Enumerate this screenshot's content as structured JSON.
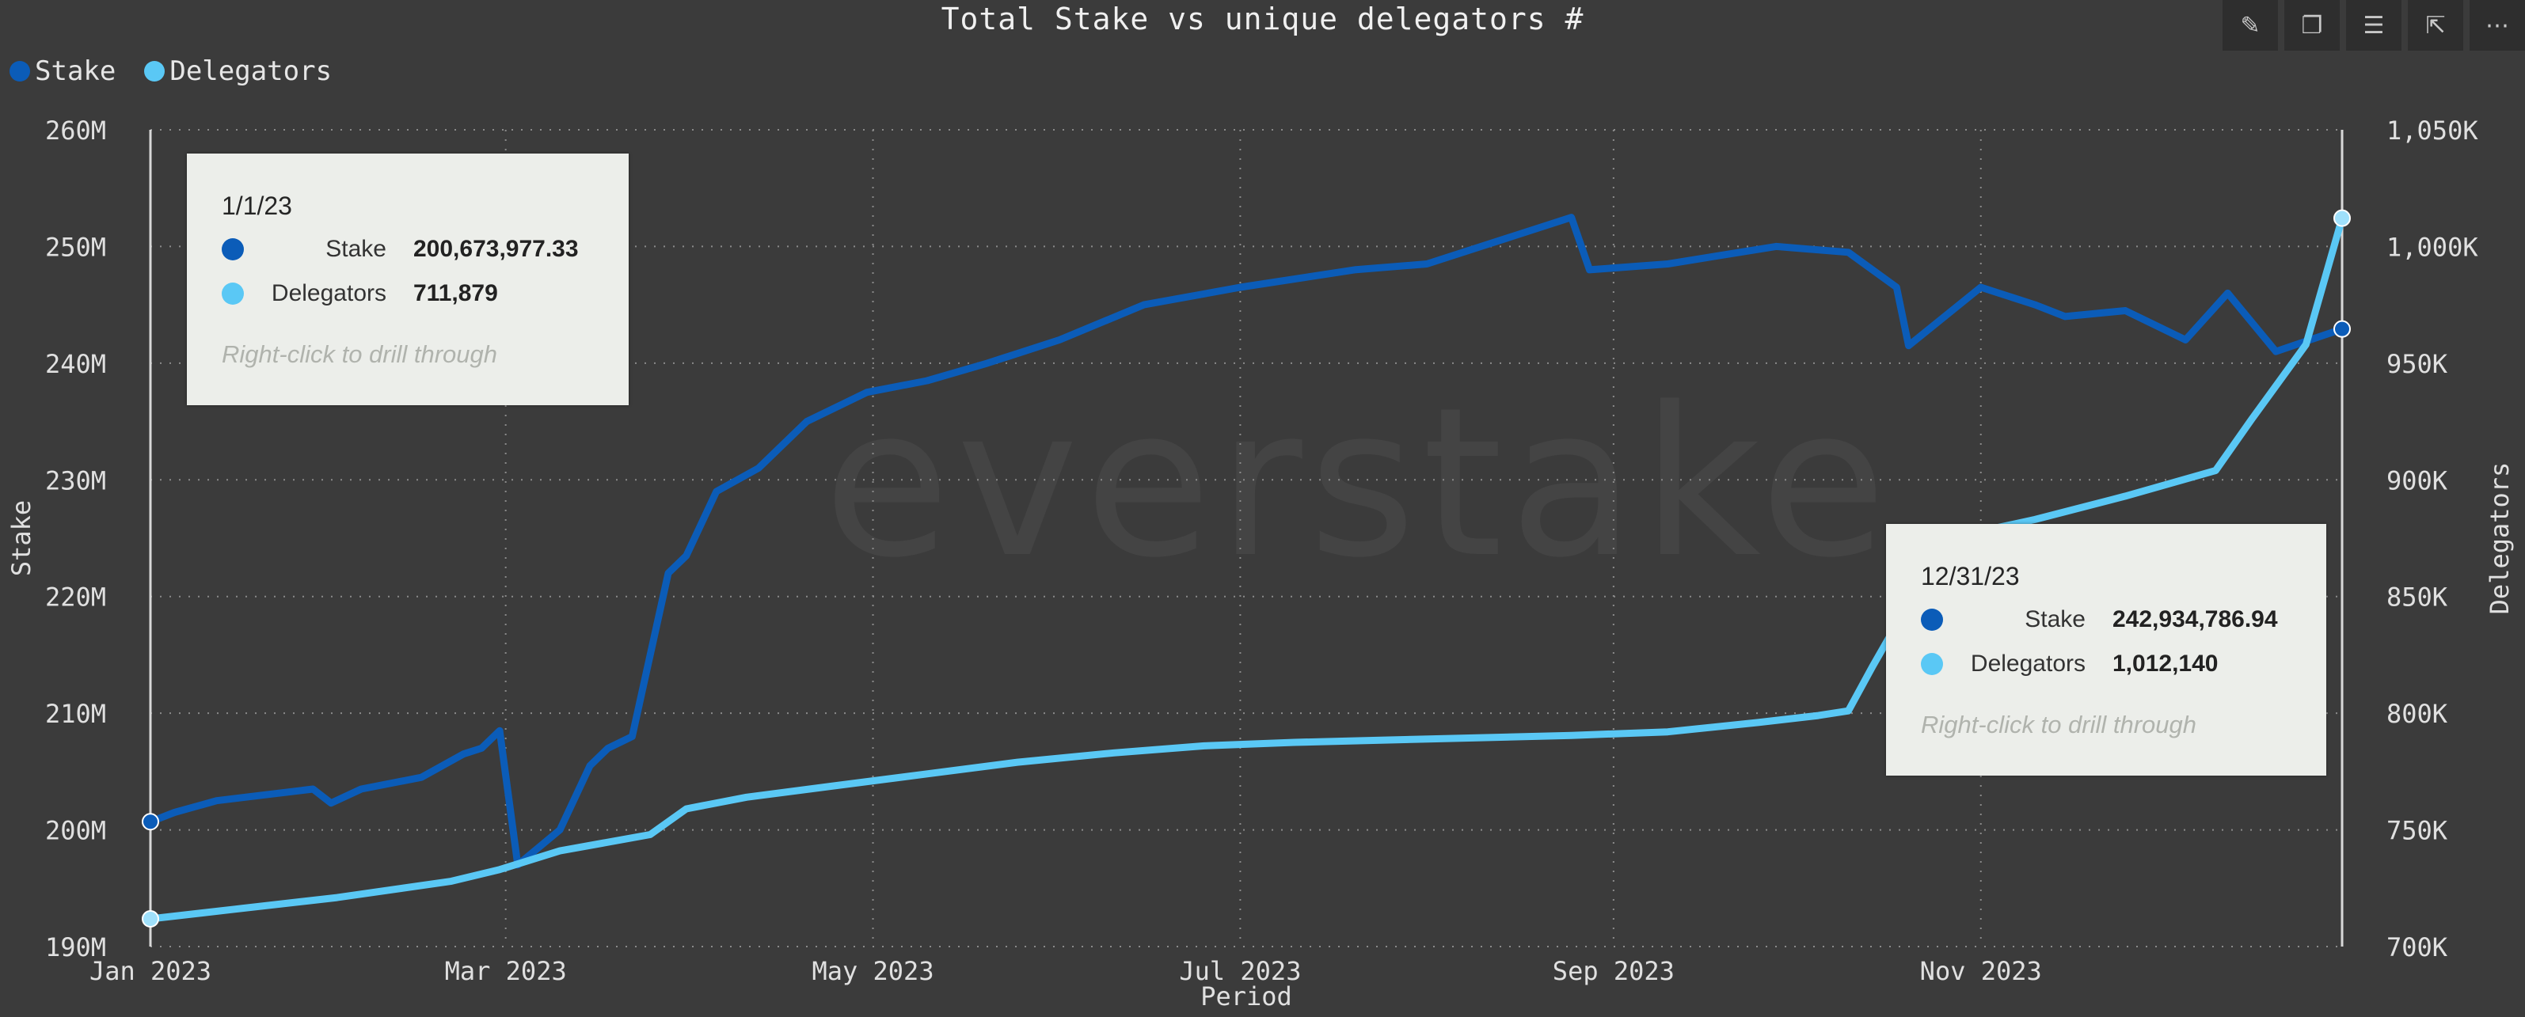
{
  "toolbar": {
    "icons": [
      "pin-icon",
      "copy-icon",
      "filter-icon",
      "focus-mode-icon",
      "more-options-icon"
    ],
    "glyphs": [
      "✎",
      "❐",
      "☰",
      "⇱",
      "⋯"
    ]
  },
  "watermark": "everstake",
  "colors": {
    "stake": "#0b5cb8",
    "delegators": "#5ac8f5",
    "grid": "#8a8a8a",
    "axis_text": "#e0e0e0"
  },
  "chart_data": {
    "type": "line",
    "title": "Total Stake vs unique delegators #",
    "xlabel": "Period",
    "ylabel": "Stake",
    "y2label": "Delegators",
    "x_ticks": [
      "Jan 2023",
      "Mar 2023",
      "May 2023",
      "Jul 2023",
      "Sep 2023",
      "Nov 2023"
    ],
    "x_tick_dates": [
      "2023-01-01",
      "2023-03-01",
      "2023-05-01",
      "2023-07-01",
      "2023-09-01",
      "2023-11-01"
    ],
    "x_range": [
      "2023-01-01",
      "2023-12-31"
    ],
    "ylim": [
      190000000,
      260000000
    ],
    "y_ticks": [
      "190M",
      "200M",
      "210M",
      "220M",
      "230M",
      "240M",
      "250M",
      "260M"
    ],
    "y2lim": [
      700000,
      1050000
    ],
    "y2_ticks": [
      "700K",
      "750K",
      "800K",
      "850K",
      "900K",
      "950K",
      "1,000K",
      "1,050K"
    ],
    "grid": true,
    "legend_position": "top-left",
    "series": [
      {
        "name": "Stake",
        "axis": "left",
        "x": [
          "2023-01-01",
          "2023-01-05",
          "2023-01-12",
          "2023-01-20",
          "2023-01-28",
          "2023-01-31",
          "2023-02-05",
          "2023-02-15",
          "2023-02-22",
          "2023-02-25",
          "2023-02-28",
          "2023-03-03",
          "2023-03-10",
          "2023-03-15",
          "2023-03-18",
          "2023-03-22",
          "2023-03-28",
          "2023-03-31",
          "2023-04-05",
          "2023-04-12",
          "2023-04-20",
          "2023-04-30",
          "2023-05-10",
          "2023-05-20",
          "2023-06-01",
          "2023-06-15",
          "2023-07-01",
          "2023-07-20",
          "2023-08-01",
          "2023-08-10",
          "2023-08-25",
          "2023-08-28",
          "2023-09-10",
          "2023-09-28",
          "2023-10-10",
          "2023-10-18",
          "2023-10-20",
          "2023-11-01",
          "2023-11-10",
          "2023-11-15",
          "2023-11-25",
          "2023-12-05",
          "2023-12-12",
          "2023-12-20",
          "2023-12-31"
        ],
        "values": [
          200700000.0,
          201500000.0,
          202500000.0,
          203000000.0,
          203500000.0,
          202300000.0,
          203500000.0,
          204500000.0,
          206500000.0,
          207000000.0,
          208500000.0,
          197000000.0,
          200000000.0,
          205500000.0,
          207000000.0,
          208000000.0,
          222000000.0,
          223500000.0,
          229000000.0,
          231000000.0,
          235000000.0,
          237500000.0,
          238500000.0,
          240000000.0,
          242000000.0,
          245000000.0,
          246500000.0,
          248000000.0,
          248500000.0,
          250000000.0,
          252500000.0,
          248000000.0,
          248500000.0,
          250000000.0,
          249500000.0,
          246500000.0,
          241500000.0,
          246500000.0,
          245000000.0,
          244000000.0,
          244500000.0,
          242000000.0,
          246000000.0,
          241000000.0,
          242930000.0
        ]
      },
      {
        "name": "Delegators",
        "axis": "right",
        "x": [
          "2023-01-01",
          "2023-01-15",
          "2023-02-01",
          "2023-02-20",
          "2023-02-28",
          "2023-03-10",
          "2023-03-25",
          "2023-03-31",
          "2023-04-10",
          "2023-04-25",
          "2023-05-10",
          "2023-05-25",
          "2023-06-10",
          "2023-06-25",
          "2023-07-10",
          "2023-07-25",
          "2023-08-10",
          "2023-08-25",
          "2023-09-10",
          "2023-09-25",
          "2023-10-05",
          "2023-10-10",
          "2023-10-14",
          "2023-10-18",
          "2023-10-20",
          "2023-11-01",
          "2023-11-10",
          "2023-11-25",
          "2023-12-10",
          "2023-12-16",
          "2023-12-25",
          "2023-12-31"
        ],
        "values": [
          711879,
          716000,
          721000,
          728000,
          733000,
          741000,
          748000,
          759000,
          764000,
          769000,
          774000,
          779000,
          783000,
          786000,
          787500,
          788500,
          789500,
          790500,
          792000,
          796000,
          799000,
          801000,
          820000,
          838000,
          866000,
          878000,
          883000,
          893000,
          904000,
          926000,
          958000,
          1012140
        ]
      }
    ],
    "tooltips": [
      {
        "date": "1/1/23",
        "rows": [
          {
            "label": "Stake",
            "value": "200,673,977.33"
          },
          {
            "label": "Delegators",
            "value": "711,879"
          }
        ],
        "hint": "Right-click to drill through"
      },
      {
        "date": "12/31/23",
        "rows": [
          {
            "label": "Stake",
            "value": "242,934,786.94"
          },
          {
            "label": "Delegators",
            "value": "1,012,140"
          }
        ],
        "hint": "Right-click to drill through"
      }
    ]
  }
}
